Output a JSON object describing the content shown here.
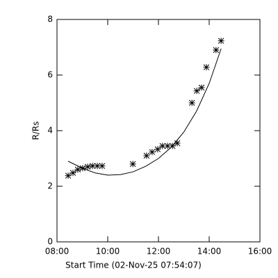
{
  "chart_data": {
    "type": "scatter",
    "xlabel": "Start Time (02-Nov-25 07:54:07)",
    "ylabel": "R/Rs",
    "xlim": [
      8,
      16
    ],
    "xticks": [
      {
        "value": 8,
        "label": "08:00"
      },
      {
        "value": 10,
        "label": "10:00"
      },
      {
        "value": 12,
        "label": "12:00"
      },
      {
        "value": 14,
        "label": "14:00"
      },
      {
        "value": 16,
        "label": "16:00"
      }
    ],
    "ylim": [
      0,
      8
    ],
    "yticks": [
      0,
      2,
      4,
      6,
      8
    ],
    "color": "#000000",
    "series": [
      {
        "x": [
          8.44,
          8.63,
          8.82,
          9.01,
          9.21,
          9.4,
          9.59,
          9.78,
          10.99,
          11.53,
          11.75,
          11.97,
          12.16,
          12.36,
          12.55,
          12.74,
          13.32,
          13.51,
          13.7,
          13.89,
          14.27,
          14.47
        ],
        "values": [
          2.38,
          2.48,
          2.6,
          2.65,
          2.7,
          2.73,
          2.73,
          2.73,
          2.8,
          3.1,
          3.23,
          3.33,
          3.45,
          3.45,
          3.45,
          3.55,
          5.0,
          5.43,
          5.55,
          6.28,
          6.9,
          7.23
        ]
      },
      {
        "x": [
          8.44,
          9.0,
          9.5,
          10.0,
          10.5,
          11.0,
          11.5,
          12.0,
          12.5,
          13.0,
          13.5,
          14.0,
          14.47
        ],
        "values": [
          2.9,
          2.65,
          2.48,
          2.4,
          2.42,
          2.52,
          2.72,
          3.0,
          3.4,
          3.95,
          4.7,
          5.7,
          6.95
        ]
      }
    ]
  }
}
